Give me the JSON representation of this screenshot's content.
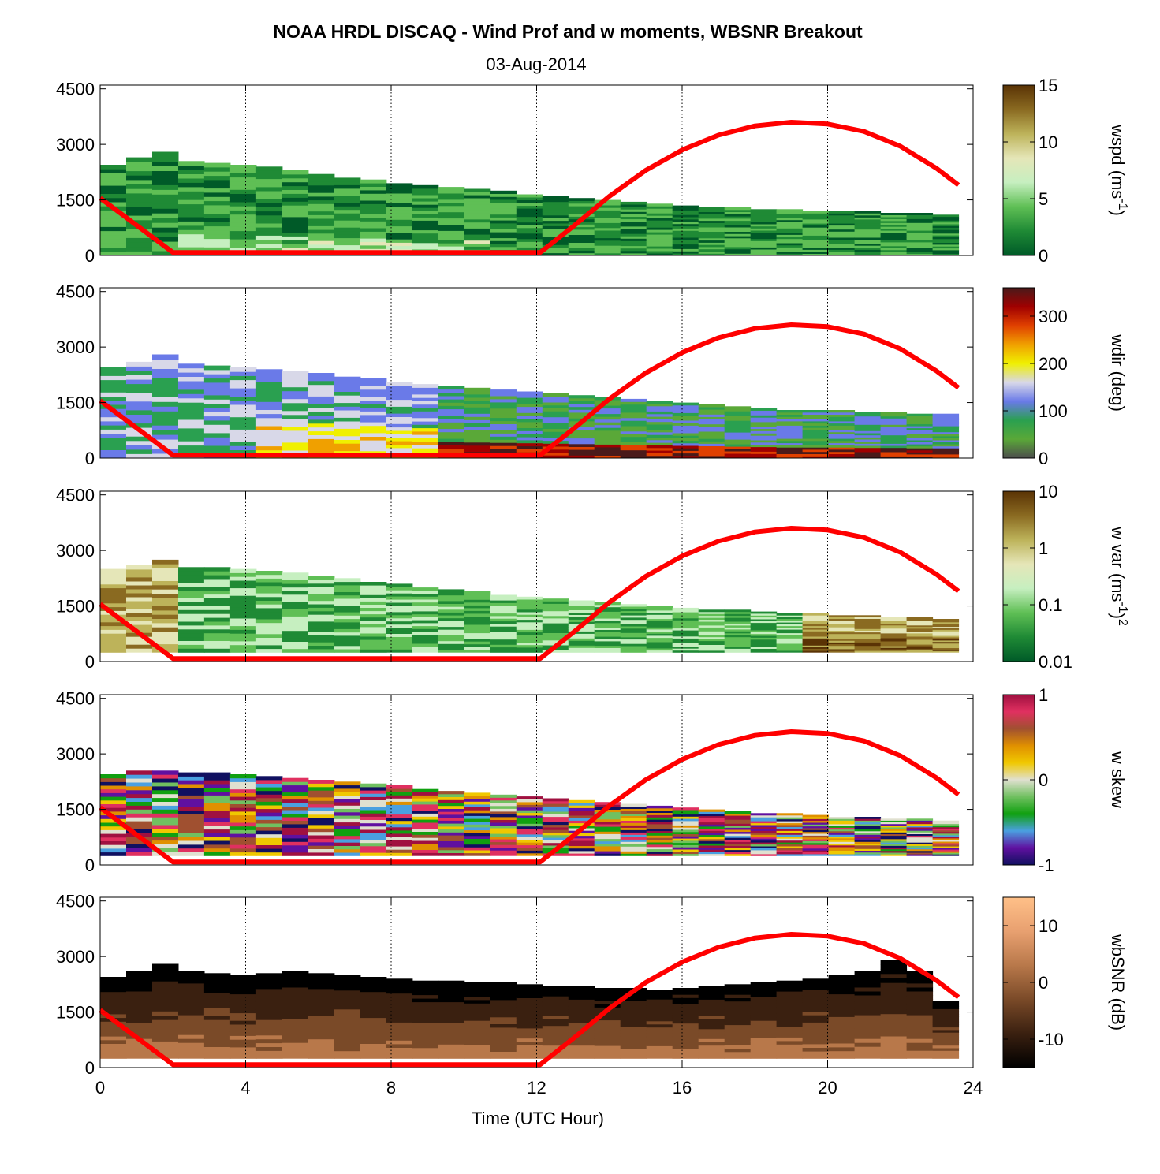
{
  "title": "NOAA HRDL DISCAQ - Wind Prof and w moments, WBSNR Breakout",
  "subtitle": "03-Aug-2014",
  "xlabel": "Time (UTC Hour)",
  "chart_data": {
    "type": "heatmap",
    "x_ticks": [
      0,
      4,
      8,
      12,
      16,
      20,
      24
    ],
    "x_range": [
      0,
      24
    ],
    "y_ticks": [
      0,
      1500,
      3000,
      4500
    ],
    "y_range": [
      0,
      4600
    ],
    "grid": "vertical dotted at x ticks",
    "boundary_layer_height": {
      "color": "#ff0000",
      "x": [
        0,
        2,
        12.1,
        13,
        14,
        15,
        16,
        17,
        18,
        19,
        20,
        21,
        22,
        23,
        23.6
      ],
      "y": [
        1550,
        80,
        80,
        780,
        1600,
        2300,
        2850,
        3250,
        3500,
        3600,
        3550,
        3350,
        2950,
        2350,
        1900
      ]
    },
    "panels": [
      {
        "id": "wspd",
        "clabel_base": "wspd (ms",
        "clabel_sup": "-1",
        "clabel_end": ")",
        "clabel_sup2": "",
        "colorbar_ticks": [
          "0",
          "5",
          "10",
          "15"
        ],
        "colormap": [
          "#005a28",
          "#1f8a35",
          "#5fbf55",
          "#c6efc0",
          "#e5e6b8",
          "#bdb35a",
          "#8a6a21",
          "#5a3305"
        ],
        "value_range": [
          0,
          15
        ],
        "data_top": [
          2450,
          2650,
          2800,
          2550,
          2500,
          2450,
          2400,
          2300,
          2200,
          2100,
          2050,
          1950,
          1900,
          1850,
          1800,
          1750,
          1650,
          1600,
          1550,
          1500,
          1450,
          1400,
          1350,
          1300,
          1300,
          1250,
          1250,
          1200,
          1200,
          1200,
          1150,
          1150,
          1100
        ],
        "data_bottom": 0
      },
      {
        "id": "wdir",
        "clabel_base": "wdir (deg)",
        "clabel_sup": "",
        "clabel_end": "",
        "clabel_sup2": "",
        "colorbar_ticks": [
          "0",
          "100",
          "200",
          "300"
        ],
        "colormap": [
          "#4d4d4d",
          "#5aa838",
          "#2aa050",
          "#6a7ae8",
          "#d8d8e8",
          "#f0f000",
          "#f0a000",
          "#e04000",
          "#a00000",
          "#4a1a1a"
        ],
        "value_range": [
          0,
          360
        ],
        "data_top": [
          2450,
          2600,
          2800,
          2550,
          2500,
          2450,
          2400,
          2350,
          2300,
          2200,
          2150,
          2050,
          2000,
          1950,
          1900,
          1850,
          1800,
          1750,
          1700,
          1650,
          1600,
          1550,
          1500,
          1450,
          1400,
          1350,
          1300,
          1300,
          1300,
          1250,
          1250,
          1200,
          1200
        ],
        "data_bottom": 0
      },
      {
        "id": "wvar",
        "clabel_base": "w var (ms",
        "clabel_sup": "-1",
        "clabel_end": ")",
        "clabel_sup2": "2",
        "colorbar_ticks": [
          "0.01",
          "0.1",
          "1",
          "10"
        ],
        "colormap": [
          "#005a28",
          "#1f8a35",
          "#5fbf55",
          "#c6efc0",
          "#e5e6b8",
          "#bdb35a",
          "#8a6a21",
          "#5a3305"
        ],
        "value_range": [
          0.01,
          10
        ],
        "data_top": [
          2500,
          2600,
          2750,
          2550,
          2550,
          2500,
          2450,
          2400,
          2300,
          2250,
          2150,
          2100,
          2000,
          1950,
          1900,
          1800,
          1750,
          1700,
          1650,
          1600,
          1550,
          1500,
          1450,
          1400,
          1400,
          1350,
          1300,
          1300,
          1250,
          1250,
          1200,
          1200,
          1150
        ],
        "data_bottom": 250
      },
      {
        "id": "wskew",
        "clabel_base": "w skew",
        "clabel_sup": "",
        "clabel_end": "",
        "clabel_sup2": "",
        "colorbar_ticks": [
          "-1",
          "0",
          "1"
        ],
        "colormap": [
          "#101060",
          "#6010a0",
          "#4aa0e0",
          "#10a010",
          "#70c060",
          "#e0e0d0",
          "#f0c800",
          "#e09000",
          "#a05030",
          "#e03060",
          "#a01040"
        ],
        "value_range": [
          -1,
          1
        ],
        "data_top": [
          2450,
          2550,
          2550,
          2500,
          2500,
          2450,
          2400,
          2350,
          2300,
          2250,
          2200,
          2150,
          2050,
          2000,
          1950,
          1900,
          1850,
          1800,
          1750,
          1700,
          1650,
          1600,
          1550,
          1500,
          1450,
          1400,
          1400,
          1350,
          1300,
          1300,
          1250,
          1250,
          1200
        ],
        "data_bottom": 250
      },
      {
        "id": "wbsnr",
        "clabel_base": "wbSNR (dB)",
        "clabel_sup": "",
        "clabel_end": "",
        "clabel_sup2": "",
        "colorbar_ticks": [
          "-10",
          "0",
          "10"
        ],
        "colormap": [
          "#000000",
          "#3a2010",
          "#7a4a28",
          "#b8784a",
          "#e8a070",
          "#ffc088"
        ],
        "value_range": [
          -15,
          15
        ],
        "data_top": [
          2450,
          2600,
          2800,
          2600,
          2550,
          2500,
          2550,
          2600,
          2550,
          2500,
          2450,
          2400,
          2350,
          2350,
          2300,
          2300,
          2250,
          2200,
          2200,
          2150,
          2150,
          2100,
          2150,
          2200,
          2250,
          2300,
          2350,
          2400,
          2500,
          2600,
          2900,
          2600,
          1800
        ],
        "data_bottom": 250
      }
    ]
  }
}
